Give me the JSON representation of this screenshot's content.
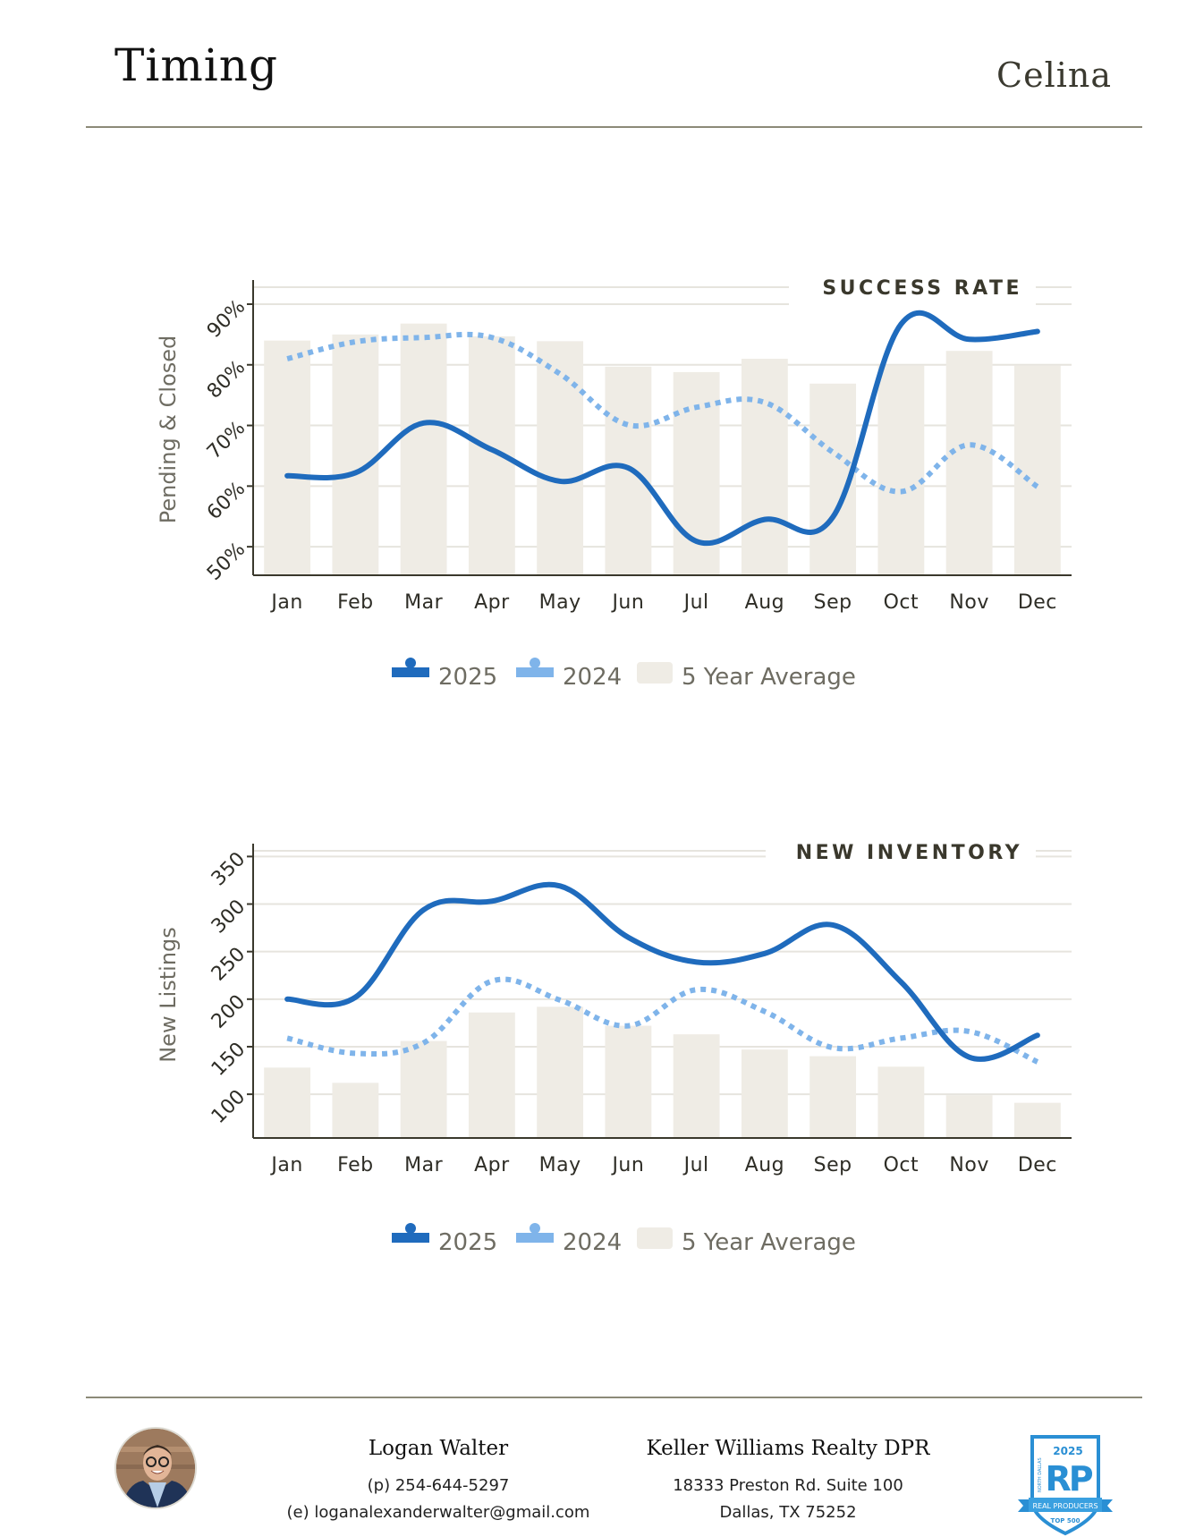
{
  "header": {
    "title": "Timing",
    "region": "Celina"
  },
  "colors": {
    "series_2025": "#1f6bbd",
    "series_2024": "#7fb4ea",
    "five_year_avg": "#efece5",
    "rule": "#8c8a78"
  },
  "chart_data": [
    {
      "type": "bar+line",
      "title": "SUCCESS RATE",
      "xlabel": "",
      "ylabel": "Pending & Closed",
      "categories": [
        "Jan",
        "Feb",
        "Mar",
        "Apr",
        "May",
        "Jun",
        "Jul",
        "Aug",
        "Sep",
        "Oct",
        "Nov",
        "Dec"
      ],
      "yticks": [
        50,
        60,
        70,
        80,
        90
      ],
      "ytick_labels": [
        "50%",
        "60%",
        "70%",
        "80%",
        "90%"
      ],
      "ylim": [
        45.3,
        92.8
      ],
      "grid": true,
      "legend_position": "bottom",
      "series": [
        {
          "name": "2025",
          "kind": "line",
          "style": "solid",
          "values": [
            61.7,
            62.2,
            70.4,
            66.0,
            60.8,
            63.0,
            50.9,
            54.5,
            54.9,
            86.7,
            84.2,
            85.5
          ]
        },
        {
          "name": "2024",
          "kind": "line",
          "style": "dotted",
          "values": [
            81.0,
            83.8,
            84.5,
            84.5,
            78.5,
            70.1,
            73.0,
            73.8,
            65.6,
            59.1,
            66.8,
            59.9
          ]
        },
        {
          "name": "5 Year Average",
          "kind": "bar",
          "values": [
            84.0,
            85.0,
            86.8,
            84.7,
            83.9,
            79.7,
            78.8,
            81.0,
            76.9,
            79.9,
            82.3,
            79.9
          ]
        }
      ]
    },
    {
      "type": "bar+line",
      "title": "NEW INVENTORY",
      "xlabel": "",
      "ylabel": "New Listings",
      "categories": [
        "Jan",
        "Feb",
        "Mar",
        "Apr",
        "May",
        "Jun",
        "Jul",
        "Aug",
        "Sep",
        "Oct",
        "Nov",
        "Dec"
      ],
      "yticks": [
        100,
        150,
        200,
        250,
        300,
        350
      ],
      "ytick_labels": [
        "100",
        "150",
        "200",
        "250",
        "300",
        "350"
      ],
      "ylim": [
        54,
        356
      ],
      "grid": true,
      "legend_position": "bottom",
      "series": [
        {
          "name": "2025",
          "kind": "line",
          "style": "solid",
          "values": [
            200,
            202,
            294,
            303,
            319,
            265,
            239,
            248,
            278,
            218,
            139,
            162
          ]
        },
        {
          "name": "2024",
          "kind": "line",
          "style": "dotted",
          "values": [
            159,
            143,
            154,
            219,
            199,
            172,
            210,
            187,
            149,
            159,
            166,
            134
          ]
        },
        {
          "name": "5 Year Average",
          "kind": "bar",
          "values": [
            128,
            112,
            156,
            186,
            192,
            172,
            163,
            147,
            140,
            129,
            99,
            91
          ]
        }
      ]
    }
  ],
  "legend": {
    "items": [
      "2025",
      "2024",
      "5 Year Average"
    ]
  },
  "footer": {
    "agent_name": "Logan Walter",
    "phone": "(p) 254-644-5297",
    "email": "(e) loganalexanderwalter@gmail.com",
    "company": "Keller Williams Realty DPR",
    "address_line1": "18333 Preston Rd. Suite 100",
    "address_line2": "Dallas, TX 75252",
    "badge": {
      "year": "2025",
      "initials": "RP",
      "side_text": "NORTH DALLAS",
      "ribbon": "REAL PRODUCERS",
      "subtitle": "TOP 500"
    }
  }
}
